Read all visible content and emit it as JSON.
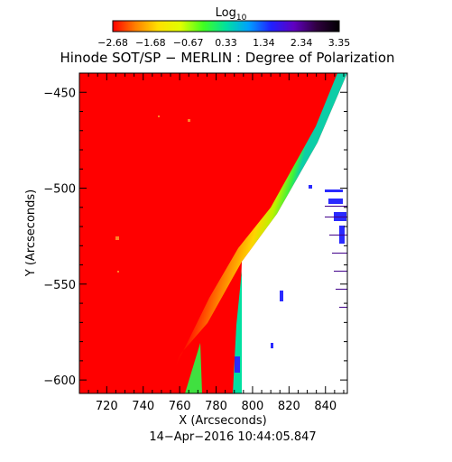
{
  "colorbar": {
    "title": "Log",
    "title_subscript": "10",
    "tick_labels": [
      "−2.68",
      "−1.68",
      "−0.67",
      "0.33",
      "1.34",
      "2.34",
      "3.35"
    ],
    "range": [
      -2.68,
      3.35
    ],
    "colors": [
      "#ff0000",
      "#ff8000",
      "#ffe000",
      "#e0ff00",
      "#40ff20",
      "#00e0a0",
      "#00a0ff",
      "#2020ff",
      "#6000c0",
      "#300040",
      "#000000"
    ]
  },
  "chart_data": {
    "type": "heatmap",
    "title": "Hinode SOT/SP − MERLIN : Degree of Polarization",
    "xlabel": "X (Arcseconds)",
    "ylabel": "Y (Arcseconds)",
    "xlim": [
      705,
      852
    ],
    "ylim": [
      -607,
      -440
    ],
    "x_ticks": [
      720,
      740,
      760,
      780,
      800,
      820,
      840
    ],
    "y_ticks": [
      -450,
      -500,
      -550,
      -600
    ],
    "x_tick_labels": [
      "720",
      "740",
      "760",
      "780",
      "800",
      "820",
      "840"
    ],
    "y_tick_labels": [
      "−450",
      "−500",
      "−550",
      "−600"
    ],
    "dominant_value_log10": -2.68,
    "limb_edge": [
      [
        742,
        -607
      ],
      [
        785,
        -565
      ],
      [
        810,
        -525
      ],
      [
        833,
        -480
      ],
      [
        848,
        -442
      ]
    ],
    "grid": false,
    "legend": "colorbar-top"
  },
  "timestamp": "14−Apr−2016 10:44:05.847"
}
